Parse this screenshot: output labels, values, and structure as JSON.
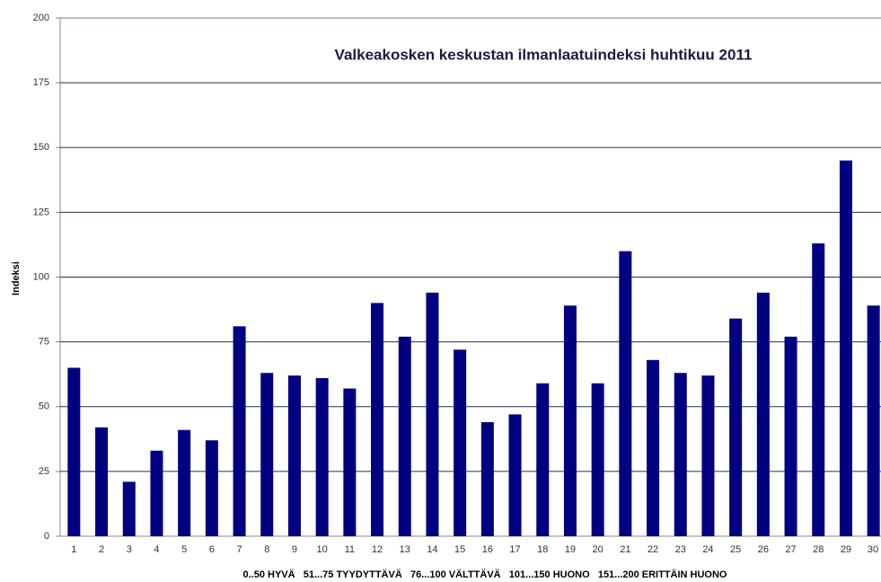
{
  "chart_data": {
    "type": "bar",
    "title": "Valkeakosken keskustan ilmanlaatuindeksi huhtikuu 2011",
    "ylabel": "Indeksi",
    "xlabel": "0..50 HYVÄ   51...75 TYYDYTTÄVÄ   76...100 VÄLTTÄVÄ   101...150 HUONO   151...200 ERITTÄIN HUONO",
    "categories": [
      "1",
      "2",
      "3",
      "4",
      "5",
      "6",
      "7",
      "8",
      "9",
      "10",
      "11",
      "12",
      "13",
      "14",
      "15",
      "16",
      "17",
      "18",
      "19",
      "20",
      "21",
      "22",
      "23",
      "24",
      "25",
      "26",
      "27",
      "28",
      "29",
      "30"
    ],
    "values": [
      65,
      42,
      21,
      33,
      41,
      37,
      81,
      63,
      62,
      61,
      57,
      90,
      77,
      94,
      72,
      44,
      47,
      59,
      89,
      59,
      110,
      68,
      63,
      62,
      84,
      94,
      77,
      113,
      145,
      89
    ],
    "color": "#000080",
    "ylim": [
      0,
      200
    ],
    "yticks": [
      0,
      25,
      50,
      75,
      100,
      125,
      150,
      175,
      200
    ],
    "grid": true
  }
}
